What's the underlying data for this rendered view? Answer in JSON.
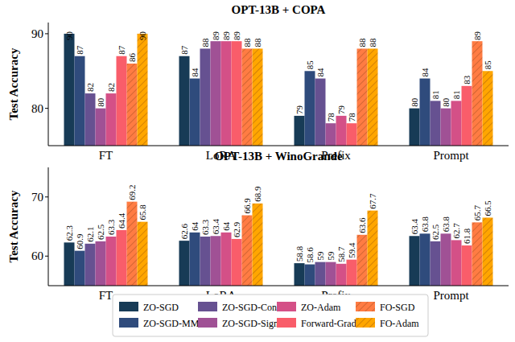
{
  "chart_data": [
    {
      "type": "bar",
      "title": "OPT-13B + COPA",
      "y_label": "Test Accuracy",
      "categories": [
        "FT",
        "LoRA",
        "Prefix",
        "Prompt"
      ],
      "ylim": [
        75,
        91.5
      ],
      "yticks": [
        80,
        90
      ],
      "data_labels": true,
      "series": [
        {
          "name": "ZO-SGD",
          "color": "#173b56",
          "values": [
            90,
            87,
            79,
            80
          ]
        },
        {
          "name": "ZO-SGD-MMT",
          "color": "#2f4b7c",
          "values": [
            87,
            84,
            85,
            84
          ]
        },
        {
          "name": "ZO-SGD-Cons",
          "color": "#665191",
          "values": [
            82,
            88,
            84,
            81
          ]
        },
        {
          "name": "ZO-SGD-Sign",
          "color": "#a05195",
          "values": [
            80,
            89,
            78,
            80
          ]
        },
        {
          "name": "ZO-Adam",
          "color": "#d45087",
          "values": [
            82,
            89,
            79,
            81
          ]
        },
        {
          "name": "Forward-Grad",
          "color": "#f95d6a",
          "values": [
            87,
            89,
            78,
            83
          ]
        },
        {
          "name": "FO-SGD",
          "color": "#ff7c43",
          "line_style": "hatched",
          "values": [
            86,
            88,
            88,
            89
          ]
        },
        {
          "name": "FO-Adam",
          "color": "#ffa600",
          "line_style": "hatched",
          "values": [
            90,
            88,
            88,
            85
          ]
        }
      ]
    },
    {
      "type": "bar",
      "title": "OPT-13B + WinoGrande",
      "y_label": "Test Accuracy",
      "categories": [
        "FT",
        "LoRA",
        "Prefix",
        "Prompt"
      ],
      "ylim": [
        55,
        75
      ],
      "yticks": [
        60,
        70
      ],
      "data_labels": true,
      "legend": "bottom",
      "series": [
        {
          "name": "ZO-SGD",
          "color": "#173b56",
          "values": [
            62.3,
            62.6,
            58.8,
            63.4
          ]
        },
        {
          "name": "ZO-SGD-MMT",
          "color": "#2f4b7c",
          "values": [
            60.9,
            64.0,
            58.6,
            63.8
          ]
        },
        {
          "name": "ZO-SGD-Cons",
          "color": "#665191",
          "values": [
            62.1,
            63.3,
            59.0,
            62.5
          ]
        },
        {
          "name": "ZO-SGD-Sign",
          "color": "#a05195",
          "values": [
            62.5,
            63.4,
            59.0,
            63.8
          ]
        },
        {
          "name": "ZO-Adam",
          "color": "#d45087",
          "values": [
            63.3,
            64.0,
            58.7,
            62.7
          ]
        },
        {
          "name": "Forward-Grad",
          "color": "#f95d6a",
          "values": [
            64.4,
            62.9,
            59.4,
            61.8
          ]
        },
        {
          "name": "FO-SGD",
          "color": "#ff7c43",
          "line_style": "hatched",
          "values": [
            69.2,
            66.9,
            63.6,
            65.7
          ]
        },
        {
          "name": "FO-Adam",
          "color": "#ffa600",
          "line_style": "hatched",
          "values": [
            65.8,
            68.9,
            67.7,
            66.5
          ]
        }
      ]
    }
  ]
}
